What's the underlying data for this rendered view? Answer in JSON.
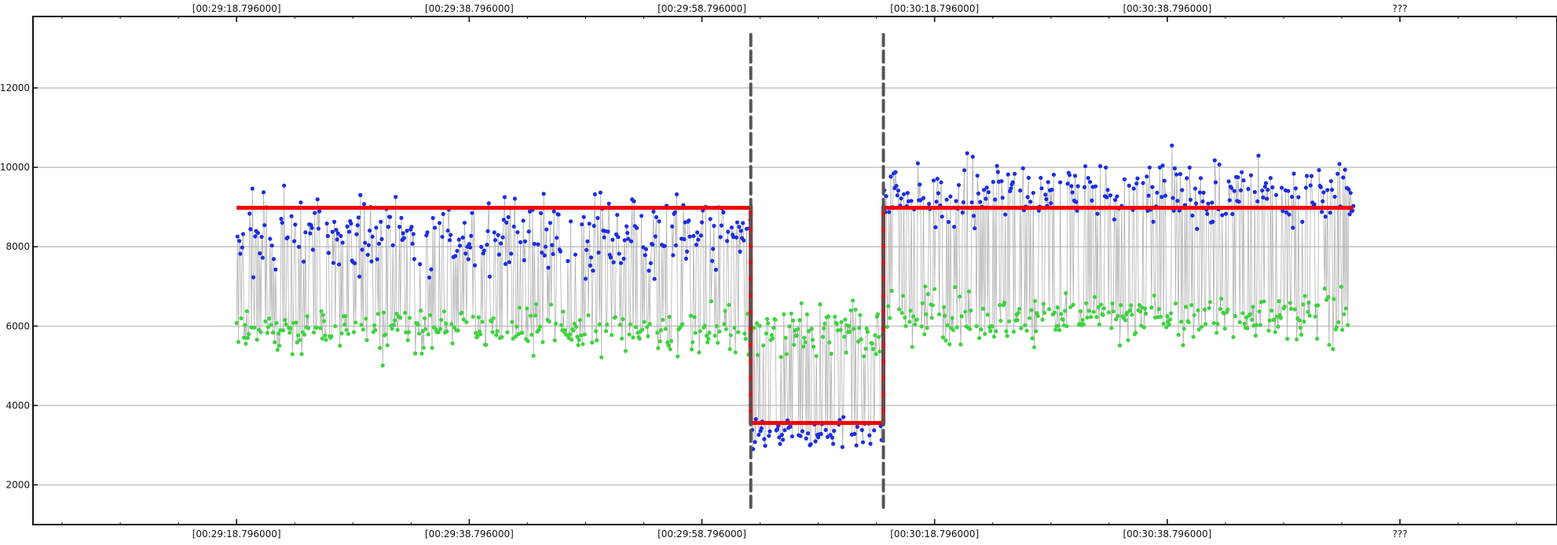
{
  "chart_data": {
    "type": "scatter",
    "xlabel": "",
    "ylabel": "",
    "ylim": [
      1000,
      13800
    ],
    "yticks": [
      2000,
      4000,
      6000,
      8000,
      10000,
      12000
    ],
    "x_tick_labels": [
      "[00:29:18.796000]",
      "[00:29:38.796000]",
      "[00:29:58.796000]",
      "[00:30:18.796000]",
      "[00:30:38.796000]",
      "???"
    ],
    "xlim_seconds": [
      -17.5,
      113.5
    ],
    "grid": true,
    "legend": "none",
    "colors": {
      "series_1": "#1c2ee0",
      "series_2": "#3fd33f",
      "connector": "#b0b0b0",
      "level": "#f00000",
      "boundary": "#555555"
    },
    "series_1_segments": [
      {
        "x_range_seconds": [
          0,
          44.2
        ],
        "mean": 8300,
        "spread": 1600
      },
      {
        "x_range_seconds": [
          44.2,
          55.6
        ],
        "mean": 3300,
        "spread": 700
      },
      {
        "x_range_seconds": [
          55.6,
          96
        ],
        "mean": 9400,
        "spread": 1500
      }
    ],
    "series_2_segments": [
      {
        "x_range_seconds": [
          0,
          44.2
        ],
        "mean": 5900,
        "spread": 1000
      },
      {
        "x_range_seconds": [
          44.2,
          55.6
        ],
        "mean": 5900,
        "spread": 1200
      },
      {
        "x_range_seconds": [
          55.6,
          96
        ],
        "mean": 6200,
        "spread": 1100
      }
    ],
    "level_line": [
      {
        "x_seconds": 0,
        "y": 8980
      },
      {
        "x_seconds": 44.2,
        "y": 8980
      },
      {
        "x_seconds": 44.2,
        "y": 3560
      },
      {
        "x_seconds": 55.6,
        "y": 3560
      },
      {
        "x_seconds": 55.6,
        "y": 8980
      },
      {
        "x_seconds": 96,
        "y": 8980
      }
    ],
    "boundaries_seconds": [
      44.2,
      55.6
    ]
  }
}
